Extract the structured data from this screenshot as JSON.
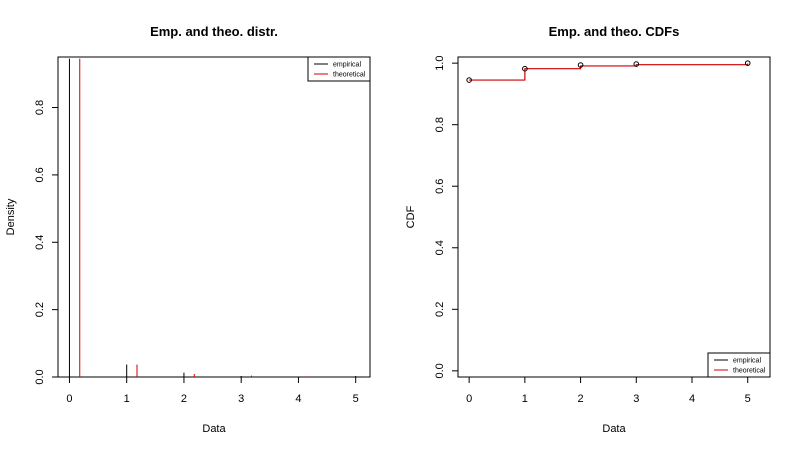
{
  "colors": {
    "empirical": "#000000",
    "theoretical": "#cc0000",
    "axis": "#000000",
    "background": "#ffffff"
  },
  "chart_data": [
    {
      "type": "bar",
      "title": "Emp. and theo. distr.",
      "xlabel": "Data",
      "ylabel": "Density",
      "xlim": [
        -0.2,
        5.25
      ],
      "ylim": [
        0,
        0.95
      ],
      "x_ticks": [
        "0",
        "1",
        "2",
        "3",
        "4",
        "5"
      ],
      "y_ticks": [
        "0.0",
        "0.2",
        "0.4",
        "0.6",
        "0.8"
      ],
      "categories": [
        0,
        1,
        2,
        3,
        4,
        5
      ],
      "series": [
        {
          "name": "empirical",
          "values": [
            0.945,
            0.037,
            0.013,
            0.003,
            0.0,
            0.003
          ]
        },
        {
          "name": "theoretical",
          "values": [
            0.945,
            0.037,
            0.009,
            0.004,
            0.002,
            0.001
          ]
        }
      ],
      "legend": {
        "position": "top-right",
        "entries": [
          "empirical",
          "theoretical"
        ]
      },
      "grid": false
    },
    {
      "type": "line",
      "title": "Emp. and theo. CDFs",
      "xlabel": "Data",
      "ylabel": "CDF",
      "xlim": [
        -0.2,
        5.4
      ],
      "ylim": [
        -0.02,
        1.02
      ],
      "x_ticks": [
        "0",
        "1",
        "2",
        "3",
        "4",
        "5"
      ],
      "y_ticks": [
        "0.0",
        "0.2",
        "0.4",
        "0.6",
        "0.8",
        "1.0"
      ],
      "series": [
        {
          "name": "empirical",
          "style": "points",
          "x": [
            0,
            1,
            2,
            3,
            5
          ],
          "y": [
            0.945,
            0.982,
            0.994,
            0.997,
            1.0
          ]
        },
        {
          "name": "theoretical",
          "style": "step",
          "x": [
            0,
            1,
            2,
            3,
            5
          ],
          "y": [
            0.945,
            0.982,
            0.991,
            0.995,
            0.999
          ]
        }
      ],
      "legend": {
        "position": "bottom-right",
        "entries": [
          "empirical",
          "theoretical"
        ]
      },
      "grid": false
    }
  ]
}
